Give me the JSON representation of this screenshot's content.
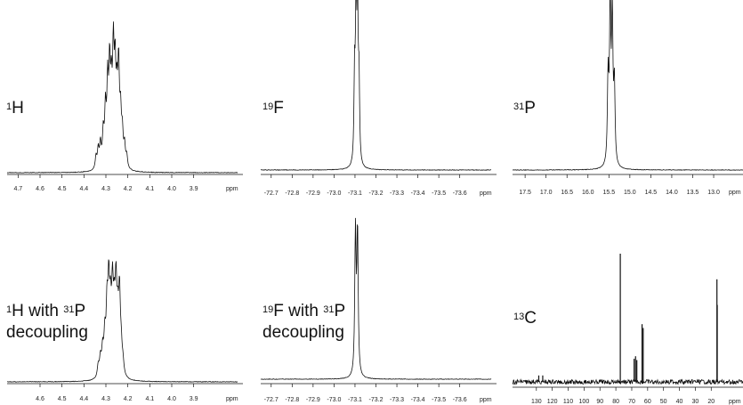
{
  "chart_data": [
    {
      "type": "line",
      "nucleus": "1H",
      "label_lines": [
        [
          "1",
          "H"
        ]
      ],
      "x_unit": "ppm",
      "xlim": [
        4.75,
        3.7
      ],
      "x_ticks": [
        "4.7",
        "4.6",
        "4.5",
        "4.4",
        "4.3",
        "4.2",
        "4.1",
        "4.0",
        "3.9"
      ],
      "series": [
        {
          "kind": "multiplet",
          "x": [
            4.345,
            4.335,
            4.325,
            4.312,
            4.302,
            4.292,
            4.283,
            4.275,
            4.266,
            4.258,
            4.25,
            4.242,
            4.233,
            4.225,
            4.215,
            4.205
          ],
          "y": [
            0.12,
            0.18,
            0.22,
            0.3,
            0.5,
            0.72,
            0.85,
            0.6,
            1.0,
            0.8,
            0.55,
            0.9,
            0.45,
            0.3,
            0.2,
            0.12
          ]
        }
      ]
    },
    {
      "type": "line",
      "nucleus": "19F",
      "label_lines": [
        [
          "19",
          "F"
        ]
      ],
      "x_unit": "ppm",
      "xlim": [
        -72.65,
        -73.75
      ],
      "x_ticks": [
        "-72.7",
        "-72.8",
        "-72.9",
        "-73.0",
        "-73.1",
        "-73.2",
        "-73.3",
        "-73.4",
        "-73.5",
        "-73.6"
      ],
      "series": [
        {
          "kind": "peaks",
          "x": [
            -73.098,
            -73.105,
            -73.112,
            -73.119
          ],
          "y": [
            0.55,
            0.98,
            1.0,
            0.52
          ]
        }
      ]
    },
    {
      "type": "line",
      "nucleus": "31P",
      "label_lines": [
        [
          "31",
          "P"
        ]
      ],
      "x_unit": "ppm",
      "xlim": [
        17.8,
        12.3
      ],
      "x_ticks": [
        "17.5",
        "17.0",
        "16.5",
        "16.0",
        "15.5",
        "15.0",
        "14.5",
        "14.0",
        "13.5",
        "13.0"
      ],
      "series": [
        {
          "kind": "peaks",
          "x": [
            15.52,
            15.47,
            15.42,
            15.37
          ],
          "y": [
            0.55,
            1.0,
            0.95,
            0.5
          ]
        }
      ]
    },
    {
      "type": "line",
      "nucleus": "1H with 31P decoupling",
      "label_lines": [
        [
          "1",
          "H with "
        ],
        [
          "31",
          "P"
        ],
        [
          "",
          "decoupling"
        ]
      ],
      "x_unit": "ppm",
      "xlim": [
        4.75,
        3.7
      ],
      "x_ticks": [
        "4.6",
        "4.5",
        "4.4",
        "4.3",
        "4.2",
        "4.1",
        "4.0",
        "3.9"
      ],
      "series": [
        {
          "kind": "multiplet",
          "x": [
            4.335,
            4.325,
            4.315,
            4.305,
            4.295,
            4.287,
            4.279,
            4.27,
            4.262,
            4.254,
            4.246,
            4.238,
            4.23,
            4.222
          ],
          "y": [
            0.15,
            0.22,
            0.3,
            0.45,
            0.75,
            1.0,
            0.65,
            0.95,
            0.6,
            1.0,
            0.55,
            0.98,
            0.3,
            0.15
          ]
        }
      ]
    },
    {
      "type": "line",
      "nucleus": "19F with 31P decoupling",
      "label_lines": [
        [
          "19",
          "F with "
        ],
        [
          "31",
          "P"
        ],
        [
          "",
          "decoupling"
        ]
      ],
      "x_unit": "ppm",
      "xlim": [
        -72.65,
        -73.75
      ],
      "x_ticks": [
        "-72.7",
        "-72.8",
        "-72.9",
        "-73.0",
        "-73.1",
        "-73.2",
        "-73.3",
        "-73.4",
        "-73.5",
        "-73.6"
      ],
      "series": [
        {
          "kind": "peaks",
          "x": [
            -73.102,
            -73.112
          ],
          "y": [
            0.98,
            1.0
          ]
        }
      ]
    },
    {
      "type": "line",
      "nucleus": "13C",
      "label_lines": [
        [
          "13",
          "C"
        ]
      ],
      "x_unit": "ppm",
      "xlim": [
        145,
        0
      ],
      "x_ticks": [
        "130",
        "120",
        "110",
        "100",
        "90",
        "80",
        "70",
        "60",
        "50",
        "40",
        "30",
        "20"
      ],
      "series": [
        {
          "kind": "sticks",
          "x": [
            77.2,
            68.5,
            67.6,
            66.8,
            63.5,
            62.8,
            16.4,
            16.2,
            128.5,
            126.0
          ],
          "y": [
            1.0,
            0.18,
            0.2,
            0.17,
            0.45,
            0.42,
            0.8,
            0.6,
            0.05,
            0.05
          ]
        }
      ]
    }
  ]
}
